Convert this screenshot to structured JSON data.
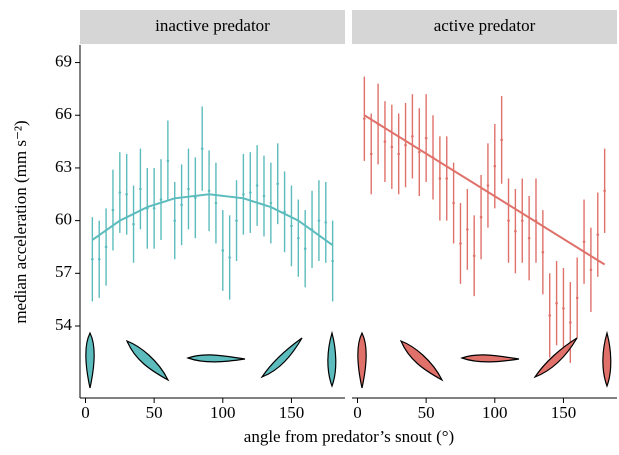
{
  "chart_data": {
    "type": "errorbar",
    "ylabel": "median acceleration (mm s⁻²)",
    "xlabel": "angle from predator’s snout (°)",
    "xlim": [
      -4,
      189
    ],
    "xticks": [
      0,
      50,
      100,
      150
    ],
    "ylim": [
      49.9,
      70
    ],
    "yticks": [
      54,
      57,
      60,
      63,
      66,
      69
    ],
    "panels": [
      {
        "title": "inactive predator",
        "color": "#5cbcbd",
        "x": [
          5,
          10,
          15,
          20,
          25,
          30,
          35,
          40,
          45,
          50,
          55,
          60,
          65,
          70,
          75,
          80,
          85,
          90,
          95,
          100,
          105,
          110,
          115,
          120,
          125,
          130,
          135,
          140,
          145,
          150,
          155,
          160,
          165,
          170,
          175,
          180
        ],
        "values": [
          57.8,
          57.8,
          58.5,
          60.6,
          61.6,
          61.5,
          59.8,
          61.8,
          60.7,
          60.7,
          61.2,
          63.4,
          60.0,
          60.9,
          61.8,
          61.3,
          64.1,
          61.7,
          61.0,
          58.3,
          57.9,
          60.0,
          61.5,
          61.6,
          62.0,
          61.4,
          61.0,
          62.1,
          60.5,
          59.7,
          59.0,
          58.4,
          59.5,
          60.0,
          59.9,
          57.7
        ],
        "errors": [
          2.4,
          2.2,
          2.2,
          2.3,
          2.3,
          2.3,
          2.2,
          2.3,
          2.3,
          2.3,
          2.3,
          2.3,
          2.2,
          2.3,
          2.3,
          2.3,
          2.4,
          2.3,
          2.3,
          2.3,
          2.4,
          2.3,
          2.3,
          2.3,
          2.3,
          2.3,
          2.3,
          2.3,
          2.3,
          2.3,
          2.2,
          2.2,
          2.2,
          2.3,
          2.3,
          2.3
        ],
        "trend_x": [
          5,
          25,
          45,
          65,
          90,
          115,
          135,
          155,
          180
        ],
        "trend_values": [
          58.9,
          60.0,
          60.77,
          61.27,
          61.5,
          61.27,
          60.77,
          60.0,
          58.6
        ]
      },
      {
        "title": "active predator",
        "color": "#e0716a",
        "x": [
          5,
          10,
          15,
          20,
          25,
          30,
          35,
          40,
          45,
          50,
          55,
          60,
          65,
          70,
          75,
          80,
          85,
          90,
          95,
          100,
          105,
          110,
          115,
          120,
          125,
          130,
          135,
          140,
          145,
          150,
          155,
          160,
          165,
          170,
          175,
          180
        ],
        "values": [
          65.8,
          63.8,
          65.5,
          64.5,
          64.2,
          63.8,
          64.3,
          64.8,
          63.9,
          64.7,
          63.6,
          62.4,
          62.4,
          61.0,
          58.7,
          59.5,
          58.0,
          60.2,
          62.0,
          63.1,
          64.6,
          60.0,
          59.4,
          60.0,
          59.0,
          60.0,
          58.2,
          54.6,
          55.3,
          55.0,
          54.2,
          55.6,
          58.8,
          57.2,
          59.2,
          61.7
        ],
        "errors": [
          2.4,
          2.3,
          2.3,
          2.3,
          2.4,
          2.3,
          2.4,
          2.4,
          2.5,
          2.5,
          2.4,
          2.4,
          2.4,
          2.3,
          2.3,
          2.3,
          2.3,
          2.4,
          2.4,
          2.4,
          2.5,
          2.4,
          2.4,
          2.4,
          2.4,
          2.4,
          2.4,
          2.4,
          2.4,
          2.3,
          2.3,
          2.3,
          2.4,
          2.4,
          2.4,
          2.4
        ],
        "trend_x": [
          5,
          180
        ],
        "trend_values": [
          66.0,
          57.5
        ]
      }
    ]
  }
}
